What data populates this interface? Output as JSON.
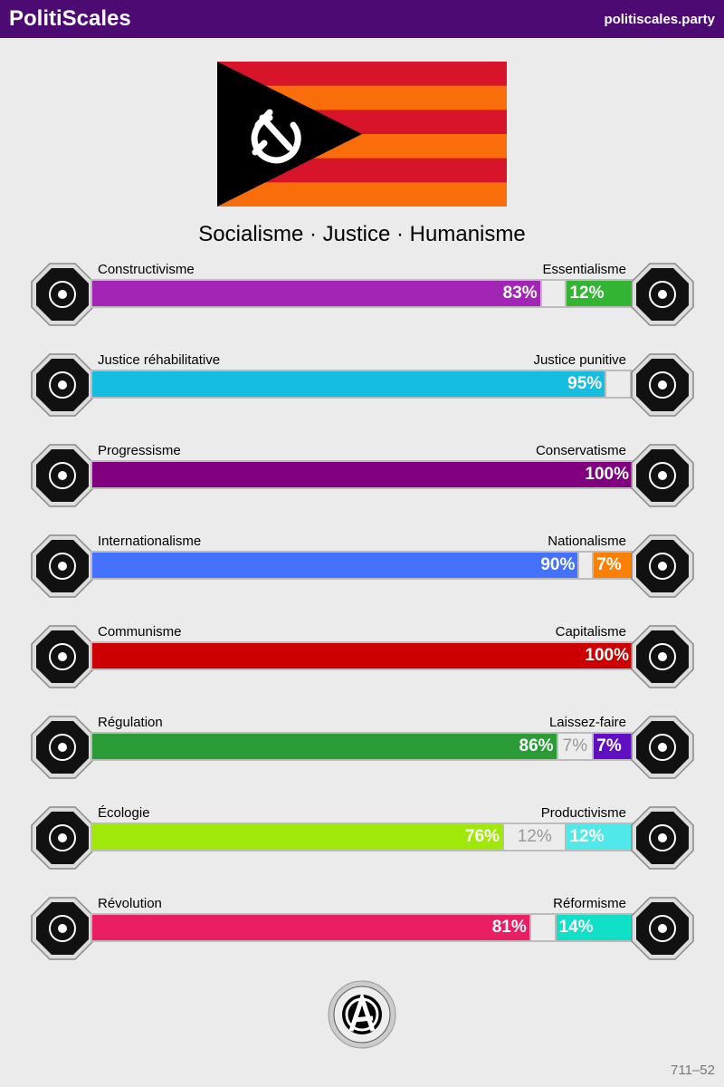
{
  "header": {
    "brand": "PolitiScales",
    "site": "politiscales.party"
  },
  "flag": {
    "stripes": [
      "#d7142a",
      "#f96d0a",
      "#d7142a",
      "#f96d0a",
      "#d7142a",
      "#f96d0a"
    ],
    "triangle": "#000000",
    "emblem": "hammer-and-sickle-icon"
  },
  "slogan": "Socialisme · Justice · Humanisme",
  "axes": [
    {
      "left": "Constructivisme",
      "right": "Essentialisme",
      "left_pct": 83,
      "mid_pct": 5,
      "right_pct": 12,
      "left_text": "83%",
      "mid_text": "",
      "right_text": "12%",
      "left_color": "#a225b5",
      "right_color": "#33b533",
      "left_icon": "eye-icon",
      "right_icon": "flower-icon"
    },
    {
      "left": "Justice réhabilitative",
      "right": "Justice punitive",
      "left_pct": 95,
      "mid_pct": 5,
      "right_pct": 0,
      "left_text": "95%",
      "mid_text": "",
      "right_text": "",
      "left_color": "#15bde0",
      "right_color": "#e8a020",
      "left_icon": "handshake-icon",
      "right_icon": "prison-bars-icon"
    },
    {
      "left": "Progressisme",
      "right": "Conservatisme",
      "left_pct": 100,
      "mid_pct": 0,
      "right_pct": 0,
      "left_text": "100%",
      "mid_text": "",
      "right_text": "",
      "left_color": "#800080",
      "right_color": "#f0c000",
      "left_icon": "comet-icon",
      "right_icon": "quill-icon"
    },
    {
      "left": "Internationalisme",
      "right": "Nationalisme",
      "left_pct": 90,
      "mid_pct": 3,
      "right_pct": 7,
      "left_text": "90%",
      "mid_text": "",
      "right_text": "7%",
      "left_color": "#4272ff",
      "right_color": "#ff8000",
      "left_icon": "globe-icon",
      "right_icon": "flag-icon"
    },
    {
      "left": "Communisme",
      "right": "Capitalisme",
      "left_pct": 100,
      "mid_pct": 0,
      "right_pct": 0,
      "left_text": "100%",
      "mid_text": "",
      "right_text": "",
      "left_color": "#cc0000",
      "right_color": "#00aadd",
      "left_icon": "hammer-sickle-icon",
      "right_icon": "money-bag-icon"
    },
    {
      "left": "Régulation",
      "right": "Laissez-faire",
      "left_pct": 86,
      "mid_pct": 7,
      "right_pct": 7,
      "left_text": "86%",
      "mid_text": "7%",
      "right_text": "7%",
      "left_color": "#2a9c35",
      "right_color": "#6010c0",
      "left_icon": "ruler-icon",
      "right_icon": "butterfly-icon"
    },
    {
      "left": "Écologie",
      "right": "Productivisme",
      "left_pct": 76,
      "mid_pct": 12,
      "right_pct": 12,
      "left_text": "76%",
      "mid_text": "12%",
      "right_text": "12%",
      "left_color": "#a0e80a",
      "right_color": "#50e8e8",
      "left_icon": "sprout-icon",
      "right_icon": "gear-icon"
    },
    {
      "left": "Révolution",
      "right": "Réformisme",
      "left_pct": 81,
      "mid_pct": 5,
      "right_pct": 14,
      "left_text": "81%",
      "mid_text": "",
      "right_text": "14%",
      "left_color": "#e91e63",
      "right_color": "#10e0c8",
      "left_icon": "fist-icon",
      "right_icon": "boat-icon"
    }
  ],
  "seal": {
    "text": "ANARCHISME",
    "icon": "anarchy-seal-icon"
  },
  "code": "711–52"
}
